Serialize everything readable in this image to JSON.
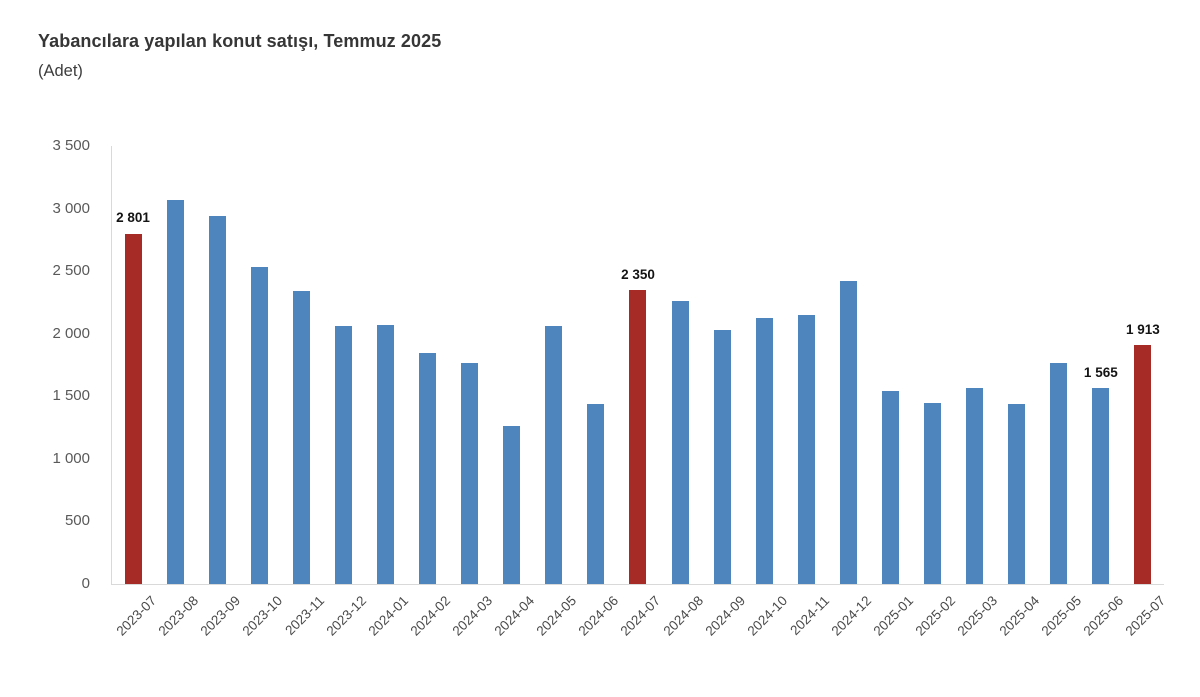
{
  "chart": {
    "title": "Yabancılara yapılan konut satışı, Temmuz 2025",
    "subtitle": "(Adet)",
    "colors": {
      "bar_default": "#4e85bd",
      "bar_highlight": "#a62b26",
      "axis_line": "#d9d9d9",
      "tick_label": "#595959",
      "data_label": "#141414"
    }
  },
  "chart_data": {
    "type": "bar",
    "title": "Yabancılara yapılan konut satışı, Temmuz 2025",
    "subtitle": "(Adet)",
    "xlabel": "",
    "ylabel": "Adet",
    "categories": [
      "2023-07",
      "2023-08",
      "2023-09",
      "2023-10",
      "2023-11",
      "2023-12",
      "2024-01",
      "2024-02",
      "2024-03",
      "2024-04",
      "2024-05",
      "2024-06",
      "2024-07",
      "2024-08",
      "2024-09",
      "2024-10",
      "2024-11",
      "2024-12",
      "2025-01",
      "2025-02",
      "2025-03",
      "2025-04",
      "2025-05",
      "2025-06",
      "2025-07"
    ],
    "values": [
      2801,
      3065,
      2940,
      2535,
      2340,
      2065,
      2070,
      1850,
      1770,
      1265,
      2060,
      1440,
      2350,
      2260,
      2030,
      2125,
      2150,
      2420,
      1540,
      1450,
      1570,
      1435,
      1765,
      1565,
      1913
    ],
    "highlight_indices": [
      0,
      12,
      24
    ],
    "data_labels": [
      {
        "index": 0,
        "text": "2 801"
      },
      {
        "index": 12,
        "text": "2 350"
      },
      {
        "index": 23,
        "text": "1 565"
      },
      {
        "index": 24,
        "text": "1 913"
      }
    ],
    "ylim": [
      0,
      3500
    ],
    "ytick_step": 500,
    "ytick_labels": [
      "0",
      "500",
      "1 000",
      "1 500",
      "2 000",
      "2 500",
      "3 000",
      "3 500"
    ],
    "grid": false,
    "legend": false,
    "x_label_rotation": -45
  }
}
